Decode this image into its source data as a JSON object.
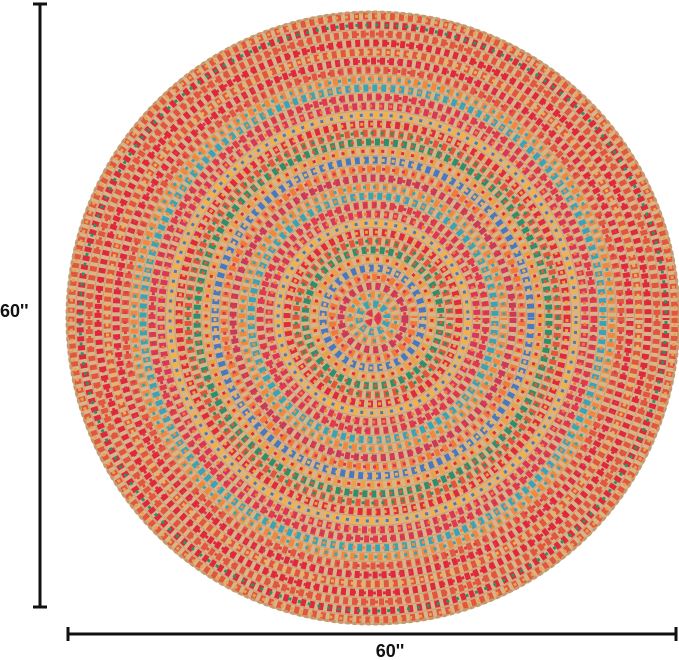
{
  "dimensions": {
    "height_label": "60''",
    "width_label": "60''"
  }
}
